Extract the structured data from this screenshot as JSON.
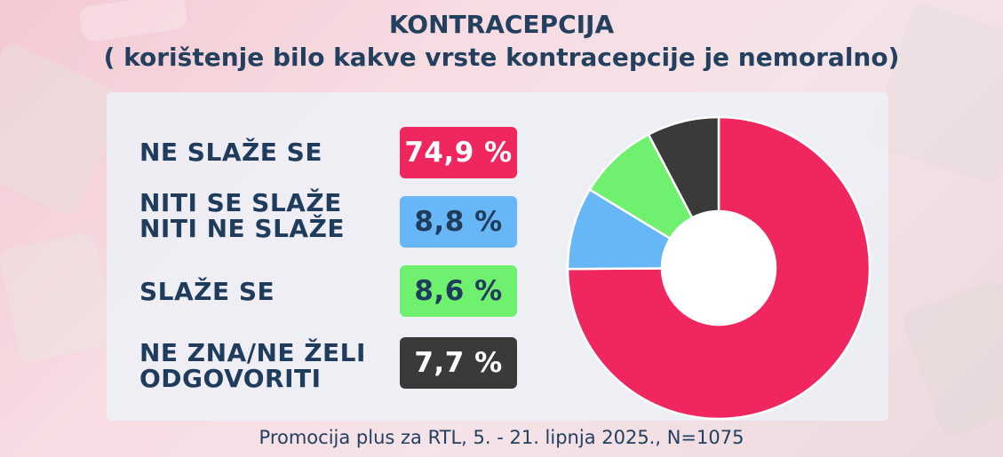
{
  "title": "KONTRACEPCIJA",
  "subtitle": "( korištenje bilo kakve vrste kontracepcije je nemoralno)",
  "source": "Promocija plus za RTL, 5. - 21. lipnja 2025., N=1075",
  "rows": [
    {
      "label_lines": [
        "NE SLAŽE SE"
      ],
      "value_text": "74,9 %",
      "color": "#f0265e"
    },
    {
      "label_lines": [
        "NITI SE SLAŽE",
        "NITI NE SLAŽE"
      ],
      "value_text": "8,8 %",
      "color": "#67b6f6"
    },
    {
      "label_lines": [
        "SLAŽE SE"
      ],
      "value_text": "8,6 %",
      "color": "#6ff06f"
    },
    {
      "label_lines": [
        "NE ZNA/NE ŽELI",
        "ODGOVORITI"
      ],
      "value_text": "7,7 %",
      "color": "#3a3a3a"
    }
  ],
  "chart_data": {
    "type": "pie",
    "variant": "donut",
    "title": "KONTRACEPCIJA",
    "subtitle": "( korištenje bilo kakve vrste kontracepcije je nemoralno)",
    "categories": [
      "NE SLAŽE SE",
      "NITI SE SLAŽE NITI NE SLAŽE",
      "SLAŽE SE",
      "NE ZNA/NE ŽELI ODGOVORITI"
    ],
    "values": [
      74.9,
      8.8,
      8.6,
      7.7
    ],
    "unit": "%",
    "colors": [
      "#f0265e",
      "#67b6f6",
      "#6ff06f",
      "#3a3a3a"
    ],
    "start": "top",
    "direction": "clockwise"
  }
}
